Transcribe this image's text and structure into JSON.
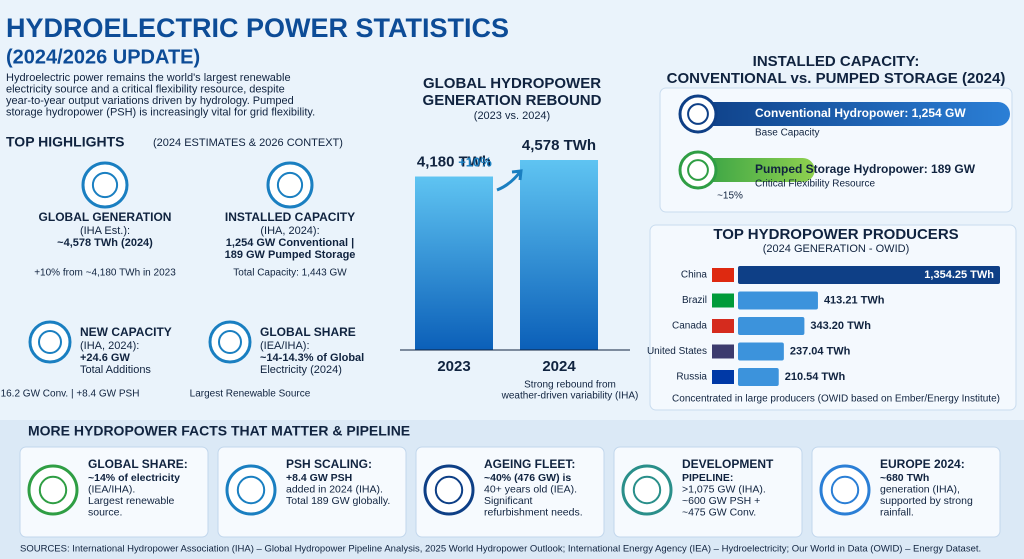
{
  "header": {
    "title": "HYDROELECTRIC POWER STATISTICS",
    "subtitle": "(2024/2026 UPDATE)",
    "intro": [
      "Hydroelectric power remains the world's largest renewable",
      "electricity source and a critical flexibility resource, despite",
      "year-to-year output variations driven by hydrology. Pumped",
      "storage hydropower (PSH) is increasingly vital for grid flexibility."
    ]
  },
  "highlights": {
    "title": "TOP HIGHLIGHTS",
    "subtitle": "(2024 ESTIMATES & 2026 CONTEXT)",
    "items": [
      {
        "title": "GLOBAL GENERATION",
        "lines": [
          "(IHA Est.):",
          "~4,578 TWh (2024)"
        ],
        "footer": "+10% from ~4,180 TWh in 2023"
      },
      {
        "title": "INSTALLED CAPACITY",
        "lines": [
          "(IHA, 2024):",
          "1,254 GW Conventional |",
          "189 GW Pumped Storage"
        ],
        "footer": "Total Capacity: 1,443 GW"
      },
      {
        "title": "NEW CAPACITY",
        "lines": [
          "(IHA, 2024):",
          "+24.6 GW",
          "Total Additions"
        ],
        "footer": "16.2 GW Conv. | +8.4 GW PSH"
      },
      {
        "title": "GLOBAL SHARE",
        "lines": [
          "(IEA/IHA):",
          "~14-14.3% of Global",
          "Electricity (2024)"
        ],
        "footer": "Largest Renewable Source"
      }
    ]
  },
  "generation": {
    "title": [
      "GLOBAL HYDROPOWER",
      "GENERATION REBOUND"
    ],
    "subtitle": "(2023 vs. 2024)",
    "change": "+10%",
    "bars": [
      {
        "label": "2023",
        "value": 4180,
        "value_label": "4,180 TWh"
      },
      {
        "label": "2024",
        "value": 4578,
        "value_label": "4,578 TWh"
      }
    ],
    "note": [
      "Strong rebound from",
      "weather-driven variability (IHA)"
    ]
  },
  "capacity": {
    "title": [
      "INSTALLED CAPACITY:",
      "CONVENTIONAL vs. PUMPED STORAGE (2024)"
    ],
    "items": [
      {
        "label": "Conventional Hydropower: 1,254 GW",
        "value": 1254,
        "sub": "Base Capacity"
      },
      {
        "label": "Pumped Storage Hydropower: 189 GW",
        "value": 189,
        "sub": "Critical Flexibility Resource"
      }
    ],
    "share": "~15%"
  },
  "producers": {
    "title": "TOP HYDROPOWER PRODUCERS",
    "subtitle": "(2024 GENERATION - OWID)",
    "rows": [
      {
        "country": "China",
        "value": 1354.25,
        "value_label": "1,354.25 TWh"
      },
      {
        "country": "Brazil",
        "value": 413.21,
        "value_label": "413.21 TWh"
      },
      {
        "country": "Canada",
        "value": 343.2,
        "value_label": "343.20 TWh"
      },
      {
        "country": "United States",
        "value": 237.04,
        "value_label": "237.04 TWh"
      },
      {
        "country": "Russia",
        "value": 210.54,
        "value_label": "210.54 TWh"
      }
    ],
    "note": "Concentrated in large producers (OWID based on Ember/Energy Institute)"
  },
  "facts": {
    "title": "MORE HYDROPOWER FACTS THAT MATTER & PIPELINE",
    "items": [
      {
        "title": "GLOBAL SHARE:",
        "lines": [
          "~14% of electricity",
          "(IEA/IHA).",
          "Largest renewable",
          "source."
        ]
      },
      {
        "title": "PSH SCALING:",
        "lines": [
          "+8.4 GW PSH",
          "added in 2024 (IHA).",
          "Total 189 GW globally."
        ]
      },
      {
        "title": "AGEING FLEET:",
        "lines": [
          "~40% (476 GW) is",
          "40+ years old (IEA).",
          "Significant",
          "refurbishment needs."
        ]
      },
      {
        "title": "DEVELOPMENT",
        "lines": [
          "PIPELINE:",
          ">1,075 GW (IHA).",
          "~600 GW PSH +",
          "~475 GW Conv."
        ]
      },
      {
        "title": "EUROPE 2024:",
        "lines": [
          "~680 TWh",
          "generation (IHA),",
          "supported by strong",
          "rainfall."
        ]
      }
    ]
  },
  "sources": "SOURCES: International Hydropower Association (IHA) – Global Hydropower Pipeline Analysis, 2025 World Hydropower Outlook; International Energy Agency (IEA) – Hydroelectricity; Our World in Data (OWID) – Energy Dataset."
}
